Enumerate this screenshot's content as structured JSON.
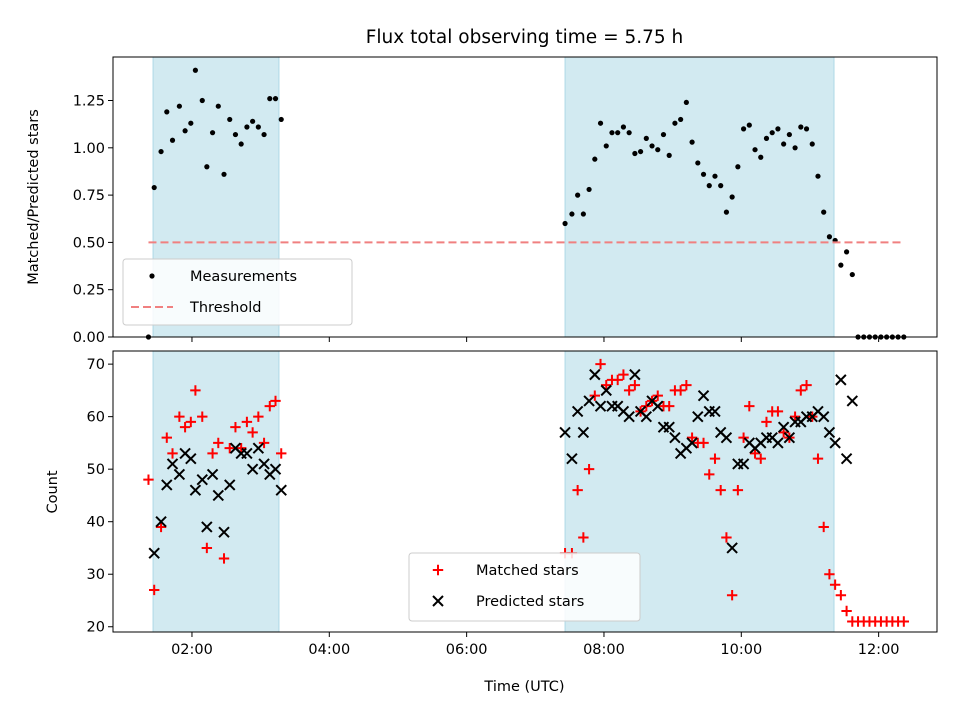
{
  "chart_data": [
    {
      "type": "scatter",
      "title": "Flux total observing time = 5.75 h",
      "xlabel": "",
      "ylabel": "Matched/Predicted stars",
      "xlim": [
        "00:51",
        "12:51"
      ],
      "ylim": [
        0,
        1.48
      ],
      "x_ticks": [
        "02:00",
        "04:00",
        "06:00",
        "08:00",
        "10:00",
        "12:00"
      ],
      "x_tick_labels_visible": false,
      "y_ticks": [
        0.0,
        0.25,
        0.5,
        0.75,
        1.0,
        1.25
      ],
      "y_tick_labels": [
        "0.00",
        "0.25",
        "0.50",
        "0.75",
        "1.00",
        "1.25"
      ],
      "shaded_intervals": [
        [
          "01:26",
          "03:16"
        ],
        [
          "07:26",
          "11:21"
        ]
      ],
      "shade_color": "#add8e6",
      "legend": {
        "position": "lower-left",
        "entries": [
          "Measurements",
          "Threshold"
        ]
      },
      "series": [
        {
          "name": "Measurements",
          "marker": "dot",
          "color": "#000000",
          "points": [
            [
              "01:22",
              0.0
            ],
            [
              "01:27",
              0.79
            ],
            [
              "01:33",
              0.98
            ],
            [
              "01:38",
              1.19
            ],
            [
              "01:43",
              1.04
            ],
            [
              "01:49",
              1.22
            ],
            [
              "01:54",
              1.09
            ],
            [
              "01:59",
              1.13
            ],
            [
              "02:03",
              1.41
            ],
            [
              "02:09",
              1.25
            ],
            [
              "02:13",
              0.9
            ],
            [
              "02:18",
              1.08
            ],
            [
              "02:23",
              1.22
            ],
            [
              "02:28",
              0.86
            ],
            [
              "02:33",
              1.15
            ],
            [
              "02:38",
              1.07
            ],
            [
              "02:43",
              1.02
            ],
            [
              "02:48",
              1.11
            ],
            [
              "02:53",
              1.14
            ],
            [
              "02:58",
              1.11
            ],
            [
              "03:03",
              1.07
            ],
            [
              "03:08",
              1.26
            ],
            [
              "03:13",
              1.26
            ],
            [
              "03:18",
              1.15
            ],
            [
              "07:26",
              0.6
            ],
            [
              "07:32",
              0.65
            ],
            [
              "07:37",
              0.75
            ],
            [
              "07:42",
              0.65
            ],
            [
              "07:47",
              0.78
            ],
            [
              "07:52",
              0.94
            ],
            [
              "07:57",
              1.13
            ],
            [
              "08:02",
              1.01
            ],
            [
              "08:07",
              1.08
            ],
            [
              "08:12",
              1.08
            ],
            [
              "08:17",
              1.11
            ],
            [
              "08:22",
              1.08
            ],
            [
              "08:27",
              0.97
            ],
            [
              "08:32",
              0.98
            ],
            [
              "08:37",
              1.05
            ],
            [
              "08:42",
              1.01
            ],
            [
              "08:47",
              0.99
            ],
            [
              "08:52",
              1.07
            ],
            [
              "08:57",
              0.96
            ],
            [
              "09:02",
              1.13
            ],
            [
              "09:07",
              1.15
            ],
            [
              "09:12",
              1.24
            ],
            [
              "09:17",
              1.03
            ],
            [
              "09:22",
              0.92
            ],
            [
              "09:27",
              0.86
            ],
            [
              "09:32",
              0.8
            ],
            [
              "09:37",
              0.85
            ],
            [
              "09:42",
              0.8
            ],
            [
              "09:47",
              0.66
            ],
            [
              "09:52",
              0.74
            ],
            [
              "09:57",
              0.9
            ],
            [
              "10:02",
              1.1
            ],
            [
              "10:07",
              1.12
            ],
            [
              "10:12",
              0.99
            ],
            [
              "10:17",
              0.95
            ],
            [
              "10:22",
              1.05
            ],
            [
              "10:27",
              1.08
            ],
            [
              "10:32",
              1.1
            ],
            [
              "10:37",
              1.02
            ],
            [
              "10:42",
              1.07
            ],
            [
              "10:47",
              1.0
            ],
            [
              "10:52",
              1.11
            ],
            [
              "10:57",
              1.1
            ],
            [
              "11:02",
              1.02
            ],
            [
              "11:07",
              0.85
            ],
            [
              "11:12",
              0.66
            ],
            [
              "11:17",
              0.53
            ],
            [
              "11:22",
              0.51
            ],
            [
              "11:27",
              0.38
            ],
            [
              "11:32",
              0.45
            ],
            [
              "11:37",
              0.33
            ],
            [
              "11:42",
              0.0
            ],
            [
              "11:47",
              0.0
            ],
            [
              "11:52",
              0.0
            ],
            [
              "11:57",
              0.0
            ],
            [
              "12:02",
              0.0
            ],
            [
              "12:07",
              0.0
            ],
            [
              "12:12",
              0.0
            ],
            [
              "12:17",
              0.0
            ],
            [
              "12:22",
              0.0
            ]
          ]
        },
        {
          "name": "Threshold",
          "style": "dashed-line",
          "color": "#f08080",
          "points": [
            [
              "01:22",
              0.5
            ],
            [
              "12:22",
              0.5
            ]
          ]
        }
      ]
    },
    {
      "type": "scatter",
      "title": "",
      "xlabel": "Time (UTC)",
      "ylabel": "Count",
      "xlim": [
        "00:51",
        "12:51"
      ],
      "ylim": [
        19,
        72.5
      ],
      "x_ticks": [
        "02:00",
        "04:00",
        "06:00",
        "08:00",
        "10:00",
        "12:00"
      ],
      "x_tick_labels": [
        "02:00",
        "04:00",
        "06:00",
        "08:00",
        "10:00",
        "12:00"
      ],
      "y_ticks": [
        20,
        30,
        40,
        50,
        60,
        70
      ],
      "y_tick_labels": [
        "20",
        "30",
        "40",
        "50",
        "60",
        "70"
      ],
      "shaded_intervals": [
        [
          "01:26",
          "03:16"
        ],
        [
          "07:26",
          "11:21"
        ]
      ],
      "shade_color": "#add8e6",
      "legend": {
        "position": "lower-center",
        "entries": [
          "Matched stars",
          "Predicted stars"
        ]
      },
      "series": [
        {
          "name": "Matched stars",
          "marker": "plus",
          "color": "#ff0000",
          "points": [
            [
              "01:22",
              48
            ],
            [
              "01:27",
              27
            ],
            [
              "01:33",
              39
            ],
            [
              "01:38",
              56
            ],
            [
              "01:43",
              53
            ],
            [
              "01:49",
              60
            ],
            [
              "01:54",
              58
            ],
            [
              "01:59",
              59
            ],
            [
              "02:03",
              65
            ],
            [
              "02:09",
              60
            ],
            [
              "02:13",
              35
            ],
            [
              "02:18",
              53
            ],
            [
              "02:23",
              55
            ],
            [
              "02:28",
              33
            ],
            [
              "02:33",
              54
            ],
            [
              "02:38",
              58
            ],
            [
              "02:43",
              54
            ],
            [
              "02:48",
              59
            ],
            [
              "02:53",
              57
            ],
            [
              "02:58",
              60
            ],
            [
              "03:03",
              55
            ],
            [
              "03:08",
              62
            ],
            [
              "03:13",
              63
            ],
            [
              "03:18",
              53
            ],
            [
              "07:26",
              34
            ],
            [
              "07:32",
              34
            ],
            [
              "07:37",
              46
            ],
            [
              "07:42",
              37
            ],
            [
              "07:47",
              50
            ],
            [
              "07:52",
              64
            ],
            [
              "07:57",
              70
            ],
            [
              "08:02",
              66
            ],
            [
              "08:07",
              67
            ],
            [
              "08:12",
              67
            ],
            [
              "08:17",
              68
            ],
            [
              "08:22",
              65
            ],
            [
              "08:27",
              66
            ],
            [
              "08:32",
              61
            ],
            [
              "08:37",
              62
            ],
            [
              "08:42",
              63
            ],
            [
              "08:47",
              64
            ],
            [
              "08:52",
              62
            ],
            [
              "08:57",
              62
            ],
            [
              "09:02",
              65
            ],
            [
              "09:07",
              65
            ],
            [
              "09:12",
              66
            ],
            [
              "09:17",
              56
            ],
            [
              "09:22",
              55
            ],
            [
              "09:27",
              55
            ],
            [
              "09:32",
              49
            ],
            [
              "09:37",
              52
            ],
            [
              "09:42",
              46
            ],
            [
              "09:47",
              37
            ],
            [
              "09:52",
              26
            ],
            [
              "09:57",
              46
            ],
            [
              "10:02",
              56
            ],
            [
              "10:07",
              62
            ],
            [
              "10:12",
              53
            ],
            [
              "10:17",
              52
            ],
            [
              "10:22",
              59
            ],
            [
              "10:27",
              61
            ],
            [
              "10:32",
              61
            ],
            [
              "10:37",
              57
            ],
            [
              "10:42",
              56
            ],
            [
              "10:47",
              60
            ],
            [
              "10:52",
              65
            ],
            [
              "10:57",
              66
            ],
            [
              "11:02",
              60
            ],
            [
              "11:07",
              52
            ],
            [
              "11:12",
              39
            ],
            [
              "11:17",
              30
            ],
            [
              "11:22",
              28
            ],
            [
              "11:27",
              26
            ],
            [
              "11:32",
              23
            ],
            [
              "11:37",
              21
            ],
            [
              "11:42",
              21
            ],
            [
              "11:47",
              21
            ],
            [
              "11:52",
              21
            ],
            [
              "11:57",
              21
            ],
            [
              "12:02",
              21
            ],
            [
              "12:07",
              21
            ],
            [
              "12:12",
              21
            ],
            [
              "12:17",
              21
            ],
            [
              "12:22",
              21
            ]
          ]
        },
        {
          "name": "Predicted stars",
          "marker": "x",
          "color": "#000000",
          "points": [
            [
              "01:27",
              34
            ],
            [
              "01:33",
              40
            ],
            [
              "01:38",
              47
            ],
            [
              "01:43",
              51
            ],
            [
              "01:49",
              49
            ],
            [
              "01:54",
              53
            ],
            [
              "01:59",
              52
            ],
            [
              "02:03",
              46
            ],
            [
              "02:09",
              48
            ],
            [
              "02:13",
              39
            ],
            [
              "02:18",
              49
            ],
            [
              "02:23",
              45
            ],
            [
              "02:28",
              38
            ],
            [
              "02:33",
              47
            ],
            [
              "02:38",
              54
            ],
            [
              "02:43",
              53
            ],
            [
              "02:48",
              53
            ],
            [
              "02:53",
              50
            ],
            [
              "02:58",
              54
            ],
            [
              "03:03",
              51
            ],
            [
              "03:08",
              49
            ],
            [
              "03:13",
              50
            ],
            [
              "03:18",
              46
            ],
            [
              "07:26",
              57
            ],
            [
              "07:32",
              52
            ],
            [
              "07:37",
              61
            ],
            [
              "07:42",
              57
            ],
            [
              "07:47",
              63
            ],
            [
              "07:52",
              68
            ],
            [
              "07:57",
              62
            ],
            [
              "08:02",
              65
            ],
            [
              "08:07",
              62
            ],
            [
              "08:12",
              62
            ],
            [
              "08:17",
              61
            ],
            [
              "08:22",
              60
            ],
            [
              "08:27",
              68
            ],
            [
              "08:32",
              61
            ],
            [
              "08:37",
              60
            ],
            [
              "08:42",
              63
            ],
            [
              "08:47",
              62
            ],
            [
              "08:52",
              58
            ],
            [
              "08:57",
              58
            ],
            [
              "09:02",
              56
            ],
            [
              "09:07",
              53
            ],
            [
              "09:12",
              54
            ],
            [
              "09:17",
              55
            ],
            [
              "09:22",
              60
            ],
            [
              "09:27",
              64
            ],
            [
              "09:32",
              61
            ],
            [
              "09:37",
              61
            ],
            [
              "09:42",
              57
            ],
            [
              "09:47",
              56
            ],
            [
              "09:52",
              35
            ],
            [
              "09:57",
              51
            ],
            [
              "10:02",
              51
            ],
            [
              "10:07",
              55
            ],
            [
              "10:12",
              54
            ],
            [
              "10:17",
              55
            ],
            [
              "10:22",
              56
            ],
            [
              "10:27",
              56
            ],
            [
              "10:32",
              55
            ],
            [
              "10:37",
              58
            ],
            [
              "10:42",
              56
            ],
            [
              "10:47",
              59
            ],
            [
              "10:52",
              59
            ],
            [
              "10:57",
              60
            ],
            [
              "11:02",
              60
            ],
            [
              "11:07",
              61
            ],
            [
              "11:12",
              60
            ],
            [
              "11:17",
              57
            ],
            [
              "11:22",
              55
            ],
            [
              "11:27",
              67
            ],
            [
              "11:32",
              52
            ],
            [
              "11:37",
              63
            ]
          ]
        }
      ]
    }
  ]
}
